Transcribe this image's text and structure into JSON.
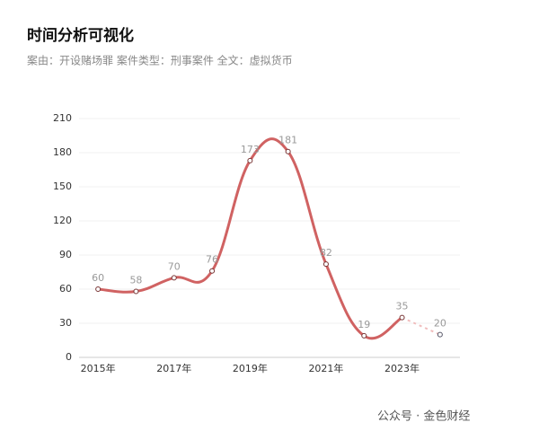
{
  "chart_data": {
    "type": "line",
    "title": "时间分析可视化",
    "subtitle": "案由：开设赌场罪  案件类型：刑事案件  全文：虚拟货币",
    "watermark": "公众号 · 金色财经",
    "categories": [
      "2015年",
      null,
      "2017年",
      null,
      "2019年",
      null,
      "2021年",
      null,
      "2023年",
      null
    ],
    "series": [
      {
        "color": "#d06262",
        "dashed": false,
        "values": [
          60,
          58,
          70,
          76,
          173,
          181,
          82,
          19,
          35,
          null
        ]
      },
      {
        "color": "#f0bcbc",
        "dashed": true,
        "values": [
          null,
          null,
          null,
          null,
          null,
          null,
          null,
          null,
          35,
          20
        ]
      }
    ],
    "ylim": [
      0,
      210
    ],
    "yticks": [
      0,
      30,
      60,
      90,
      120,
      150,
      180,
      210
    ],
    "grid": true
  }
}
